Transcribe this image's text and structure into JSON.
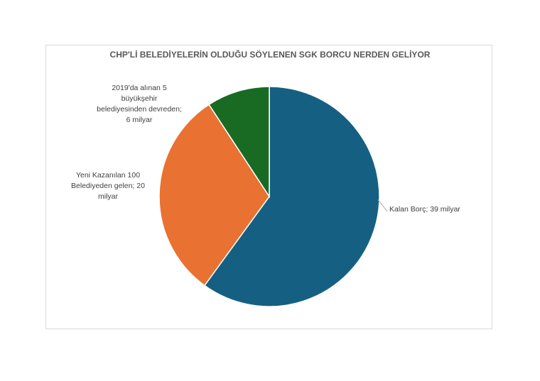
{
  "chart_data": {
    "type": "pie",
    "title": "CHP'Lİ BELEDİYELERİN OLDUĞU SÖYLENEN SGK BORCU NERDEN GELİYOR",
    "values": [
      39,
      20,
      6
    ],
    "value_labels": [
      "Kalan Borç; 39 milyar",
      "Yeni Kazanılan 100 Belediyeden gelen; 20 milyar",
      "2019'da alınan 5 büyükşehir belediyesinden devreden; 6 milyar"
    ],
    "colors": [
      "#156082",
      "#e97132",
      "#196b24"
    ]
  }
}
